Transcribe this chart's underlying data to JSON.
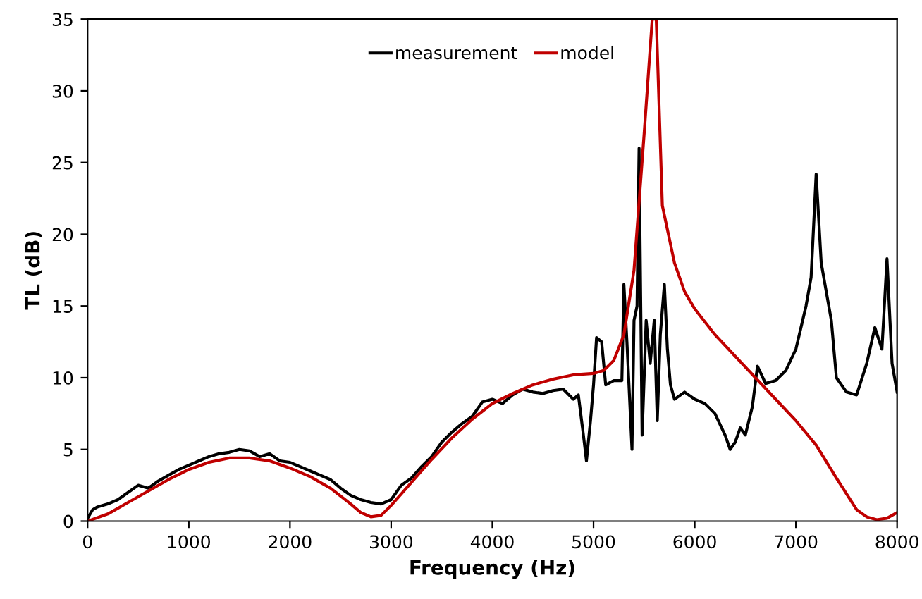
{
  "chart_data": {
    "type": "line",
    "xlabel": "Frequency (Hz)",
    "ylabel": "TL (dB)",
    "xlim": [
      0,
      8000
    ],
    "xticks": [
      0,
      1000,
      2000,
      3000,
      4000,
      5000,
      6000,
      7000,
      8000
    ],
    "ylim": [
      0,
      35
    ],
    "yticks": [
      0,
      5,
      10,
      15,
      20,
      25,
      30,
      35
    ],
    "grid": false,
    "legend": "top",
    "marker": "none",
    "line_style": "solid",
    "series": [
      {
        "name": "measurement",
        "color": "#000000",
        "x": [
          0,
          50,
          100,
          200,
          300,
          400,
          500,
          600,
          700,
          800,
          900,
          1000,
          1100,
          1200,
          1300,
          1400,
          1500,
          1600,
          1700,
          1800,
          1900,
          2000,
          2100,
          2200,
          2300,
          2400,
          2500,
          2600,
          2700,
          2800,
          2900,
          3000,
          3100,
          3200,
          3300,
          3400,
          3500,
          3600,
          3700,
          3800,
          3900,
          4000,
          4100,
          4200,
          4300,
          4400,
          4500,
          4600,
          4700,
          4800,
          4850,
          4900,
          4930,
          4970,
          5000,
          5030,
          5080,
          5120,
          5200,
          5280,
          5300,
          5330,
          5380,
          5400,
          5430,
          5450,
          5480,
          5520,
          5560,
          5600,
          5630,
          5660,
          5700,
          5730,
          5760,
          5800,
          5900,
          6000,
          6100,
          6200,
          6300,
          6350,
          6400,
          6450,
          6500,
          6570,
          6620,
          6700,
          6800,
          6900,
          7000,
          7100,
          7150,
          7200,
          7250,
          7300,
          7350,
          7400,
          7500,
          7600,
          7700,
          7780,
          7850,
          7900,
          7950,
          8000
        ],
        "values": [
          0.2,
          0.8,
          1,
          1.2,
          1.5,
          2,
          2.5,
          2.3,
          2.8,
          3.2,
          3.6,
          3.9,
          4.2,
          4.5,
          4.7,
          4.8,
          5,
          4.9,
          4.5,
          4.7,
          4.2,
          4.1,
          3.8,
          3.5,
          3.2,
          2.9,
          2.3,
          1.8,
          1.5,
          1.3,
          1.2,
          1.5,
          2.5,
          3,
          3.8,
          4.5,
          5.5,
          6.2,
          6.8,
          7.3,
          8.3,
          8.5,
          8.2,
          8.8,
          9.2,
          9,
          8.9,
          9.1,
          9.2,
          8.5,
          8.8,
          6,
          4.2,
          7,
          9.5,
          12.8,
          12.5,
          9.5,
          9.8,
          9.8,
          16.5,
          12.5,
          5,
          14,
          15,
          26,
          6,
          14,
          11,
          14,
          7,
          13,
          16.5,
          12,
          9.5,
          8.5,
          9,
          8.5,
          8.2,
          7.5,
          6,
          5,
          5.5,
          6.5,
          6,
          8,
          10.8,
          9.6,
          9.8,
          10.5,
          12,
          15,
          17,
          24.2,
          18,
          16,
          14,
          10,
          9,
          8.8,
          11,
          13.5,
          12,
          18.3,
          11,
          9
        ]
      },
      {
        "name": "model",
        "color": "#c00000",
        "x": [
          0,
          200,
          400,
          600,
          800,
          1000,
          1200,
          1400,
          1600,
          1800,
          2000,
          2200,
          2400,
          2600,
          2700,
          2800,
          2900,
          3000,
          3200,
          3400,
          3600,
          3800,
          4000,
          4200,
          4400,
          4600,
          4800,
          5000,
          5100,
          5200,
          5300,
          5400,
          5500,
          5580,
          5620,
          5680,
          5800,
          5900,
          6000,
          6200,
          6400,
          6600,
          6800,
          7000,
          7200,
          7400,
          7600,
          7700,
          7800,
          7900,
          8000
        ],
        "values": [
          0,
          0.5,
          1.3,
          2.1,
          2.9,
          3.6,
          4.1,
          4.4,
          4.4,
          4.2,
          3.7,
          3.1,
          2.3,
          1.2,
          0.6,
          0.3,
          0.4,
          1.1,
          2.7,
          4.3,
          5.8,
          7.1,
          8.2,
          8.9,
          9.5,
          9.9,
          10.2,
          10.3,
          10.5,
          11.2,
          13,
          17.5,
          27,
          35,
          35,
          22,
          18,
          16,
          14.8,
          13,
          11.5,
          10,
          8.5,
          7,
          5.3,
          3,
          0.8,
          0.3,
          0.1,
          0.2,
          0.6
        ]
      }
    ]
  }
}
